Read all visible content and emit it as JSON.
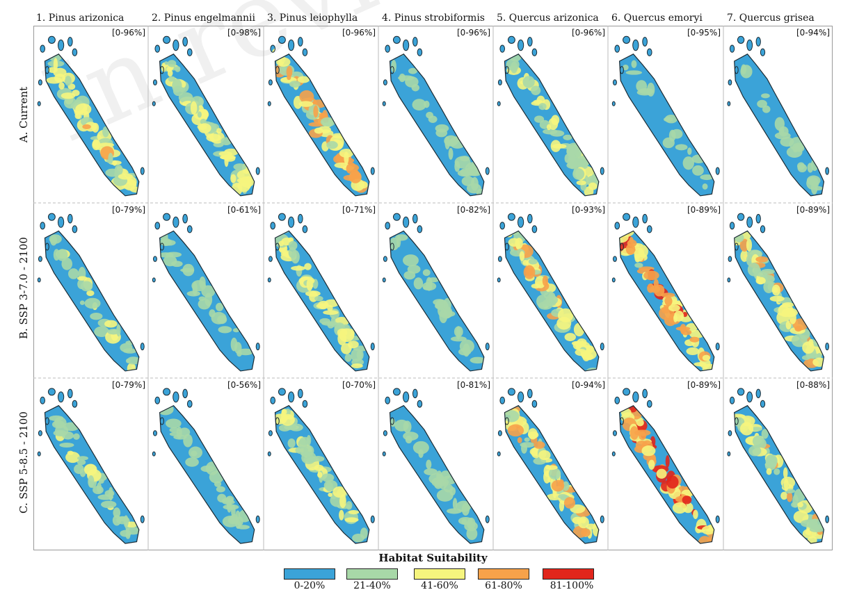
{
  "species": [
    {
      "label": "1. Pinus arizonica"
    },
    {
      "label": "2. Pinus engelmannii"
    },
    {
      "label": "3. Pinus leiophylla"
    },
    {
      "label": "4. Pinus strobiformis"
    },
    {
      "label": "5. Quercus arizonica"
    },
    {
      "label": "6. Quercus emoryi"
    },
    {
      "label": "7. Quercus grisea"
    }
  ],
  "scenarios": [
    {
      "label": "A. Current"
    },
    {
      "label": "B. SSP 3-7.0 - 2100"
    },
    {
      "label": "C. SSP 5-8.5 - 2100"
    }
  ],
  "ranges": [
    [
      "[0-96%]",
      "[0-98%]",
      "[0-96%]",
      "[0-96%]",
      "[0-96%]",
      "[0-95%]",
      "[0-94%]"
    ],
    [
      "[0-79%]",
      "[0-61%]",
      "[0-71%]",
      "[0-82%]",
      "[0-93%]",
      "[0-89%]",
      "[0-89%]"
    ],
    [
      "[0-79%]",
      "[0-56%]",
      "[0-70%]",
      "[0-81%]",
      "[0-94%]",
      "[0-89%]",
      "[0-88%]"
    ]
  ],
  "suitability_level": [
    [
      0.42,
      0.42,
      0.55,
      0.2,
      0.34,
      0.14,
      0.16
    ],
    [
      0.24,
      0.18,
      0.34,
      0.16,
      0.46,
      0.64,
      0.44
    ],
    [
      0.24,
      0.16,
      0.34,
      0.16,
      0.5,
      0.7,
      0.44
    ]
  ],
  "legend": {
    "title": "Habitat Suitability",
    "items": [
      {
        "label": "0-20%",
        "color": "#3ba3d8"
      },
      {
        "label": "21-40%",
        "color": "#a8d8a8"
      },
      {
        "label": "41-60%",
        "color": "#f6f57e"
      },
      {
        "label": "61-80%",
        "color": "#f7a24a"
      },
      {
        "label": "81-100%",
        "color": "#e1261c"
      }
    ]
  },
  "watermark": "In review"
}
